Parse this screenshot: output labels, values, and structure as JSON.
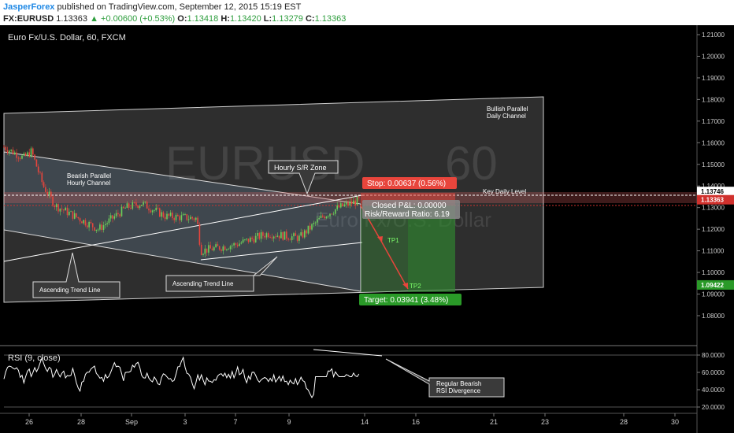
{
  "header": {
    "author": "JasperForex",
    "published": "published on TradingView.com, September 12, 2015 15:19 EST",
    "symbol": "FX:EURUSD",
    "last": "1.13363",
    "change": "+0.00600 (+0.53%)",
    "open_label": "O:",
    "open": "1.13418",
    "high_label": "H:",
    "high": "1.13420",
    "low_label": "L:",
    "low": "1.13279",
    "close_label": "C:",
    "close": "1.13363"
  },
  "colors": {
    "background": "#000000",
    "candle_up": "#6ccf5a",
    "candle_down": "#e8453c",
    "stop_box": "#e8453c",
    "target_box": "#2a9a28",
    "current_price": "#d0312d",
    "lower_tag": "#2a9a28"
  },
  "chart_data": {
    "type": "candlestick",
    "title": "Euro Fx/U.S. Dollar, 60, FXCM",
    "watermark_symbol": "EURUSD",
    "watermark_interval": "60",
    "watermark_name": "Euro Fx/U.S. Dollar",
    "x_ticks": [
      "26",
      "28",
      "Sep",
      "3",
      "7",
      "9",
      "14",
      "16",
      "21",
      "23",
      "28",
      "30"
    ],
    "y_ticks": [
      "1.21000",
      "1.20000",
      "1.19000",
      "1.18000",
      "1.17000",
      "1.16000",
      "1.15000",
      "1.14000",
      "1.13000",
      "1.12000",
      "1.11000",
      "1.10000",
      "1.09000",
      "1.08000"
    ],
    "ylim": [
      1.072,
      1.212
    ],
    "price_tags": [
      {
        "value": 1.13746,
        "label": "1.13746"
      },
      {
        "value": 1.13363,
        "label": "1.13363"
      },
      {
        "value": 1.09422,
        "label": "1.09422"
      }
    ],
    "key_level": 1.13746,
    "annotations": {
      "bullish_channel": [
        "Bullish Parallel",
        "Daily Channel"
      ],
      "bearish_channel": [
        "Bearish Parallel",
        "Hourly Channel"
      ],
      "sr_zone": "Hourly S/R Zone",
      "key_level": "Key Daily Level",
      "trend1": "Ascending Trend Line",
      "trend2": "Ascending Trend Line",
      "tp1": "TP1",
      "tp2": "TP2",
      "rsi_div": [
        "Regular Bearish",
        "RSI Divergence"
      ]
    },
    "position": {
      "entry": 1.13363,
      "stop": 1.14,
      "target": 1.09422,
      "stop_label": "Stop: 0.00637 (0.56%)",
      "target_label": "Target: 0.03941 (3.48%)",
      "pnl_label": "Closed P&L: 0.00000",
      "rr_label": "Risk/Reward Ratio: 6.19"
    },
    "rsi": {
      "title": "RSI (9, close)",
      "y_ticks": [
        "80.0000",
        "60.0000",
        "40.0000",
        "20.0000"
      ],
      "ylim": [
        15,
        85
      ]
    }
  }
}
